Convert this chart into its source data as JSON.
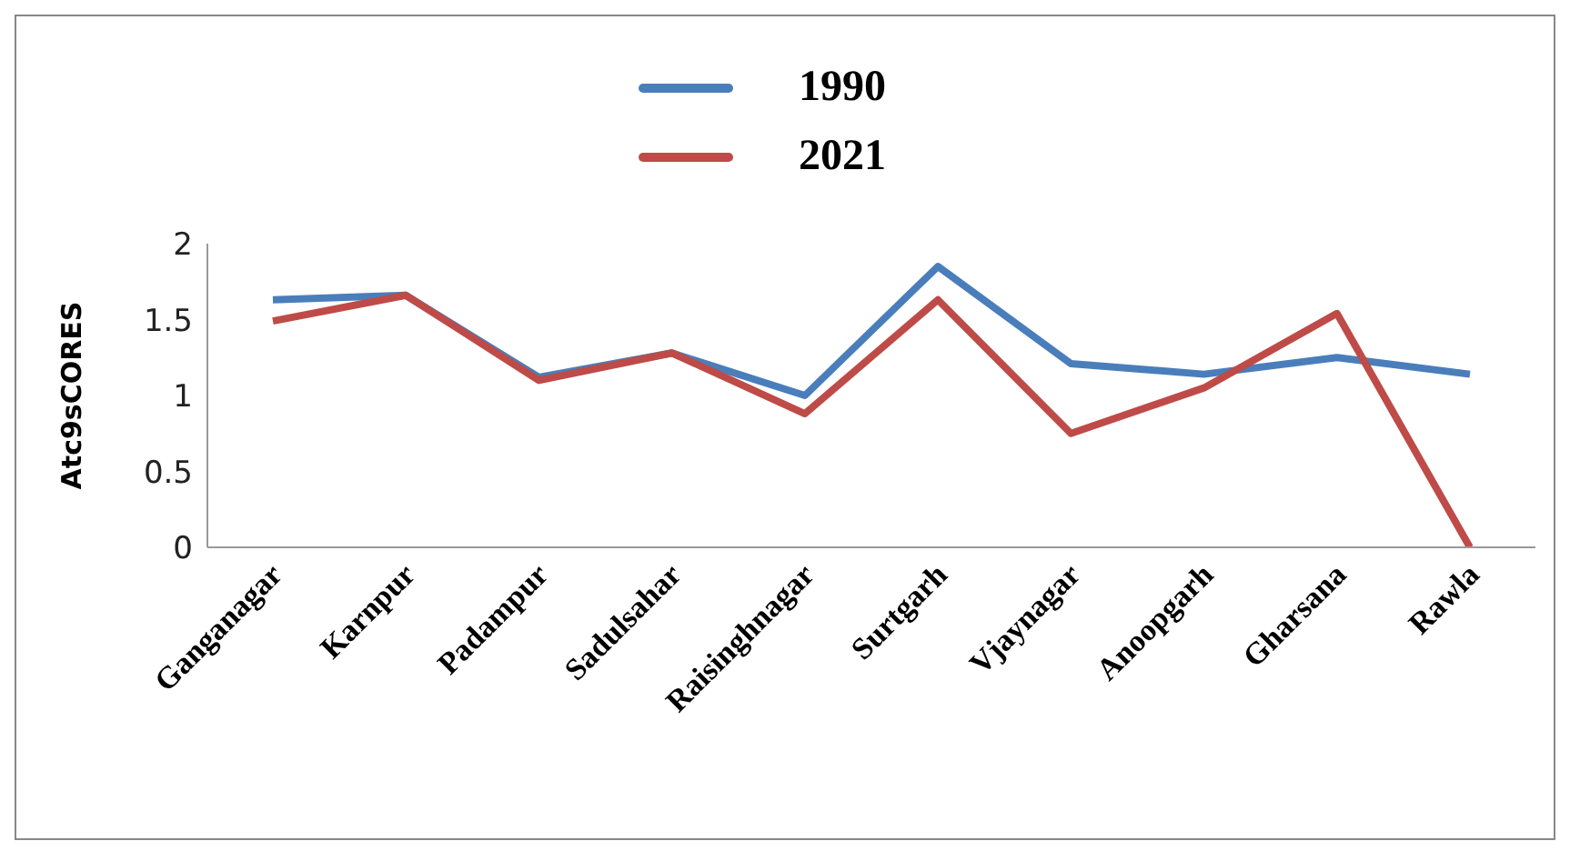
{
  "chart_data": {
    "type": "line",
    "ylabel": "Atc9sCORES",
    "categories": [
      "Ganganagar",
      "Karnpur",
      "Padampur",
      "Sadulsahar",
      "Raisinghnagar",
      "Surtgarh",
      "Vjaynagar",
      "Anoopgarh",
      "Gharsana",
      "Rawla"
    ],
    "series": [
      {
        "name": "1990",
        "color": "#4a7ebb",
        "values": [
          1.63,
          1.66,
          1.12,
          1.28,
          1.0,
          1.85,
          1.21,
          1.14,
          1.25,
          1.14
        ]
      },
      {
        "name": "2021",
        "color": "#be4b48",
        "values": [
          1.49,
          1.66,
          1.1,
          1.28,
          0.88,
          1.63,
          0.75,
          1.05,
          1.54,
          0
        ]
      }
    ],
    "ylim": [
      0,
      2
    ],
    "yticks": [
      0,
      0.5,
      1,
      1.5,
      2
    ],
    "grid": false,
    "legend": "top",
    "marker": "none"
  }
}
